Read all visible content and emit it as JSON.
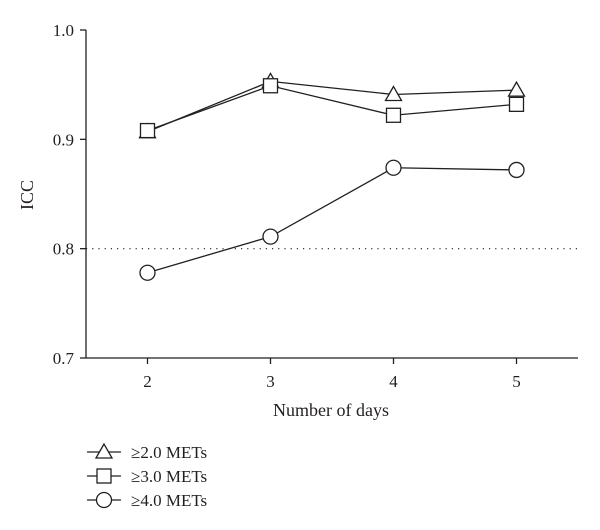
{
  "chart_data": {
    "type": "line",
    "xlabel": "Number of days",
    "ylabel": "ICC",
    "x": [
      2,
      3,
      4,
      5
    ],
    "ylim": [
      0.7,
      1.0
    ],
    "xticks": [
      "2",
      "3",
      "4",
      "5"
    ],
    "yticks": [
      "0.7",
      "0.8",
      "0.9",
      "1.0"
    ],
    "reference_line": 0.8,
    "grid": false,
    "legend_position": "bottom-left",
    "series": [
      {
        "name": "≥2.0 METs",
        "marker": "triangle",
        "values": [
          0.907,
          0.953,
          0.941,
          0.945
        ]
      },
      {
        "name": "≥3.0 METs",
        "marker": "square",
        "values": [
          0.908,
          0.949,
          0.922,
          0.932
        ]
      },
      {
        "name": "≥4.0 METs",
        "marker": "circle",
        "values": [
          0.778,
          0.811,
          0.874,
          0.872
        ]
      }
    ]
  }
}
